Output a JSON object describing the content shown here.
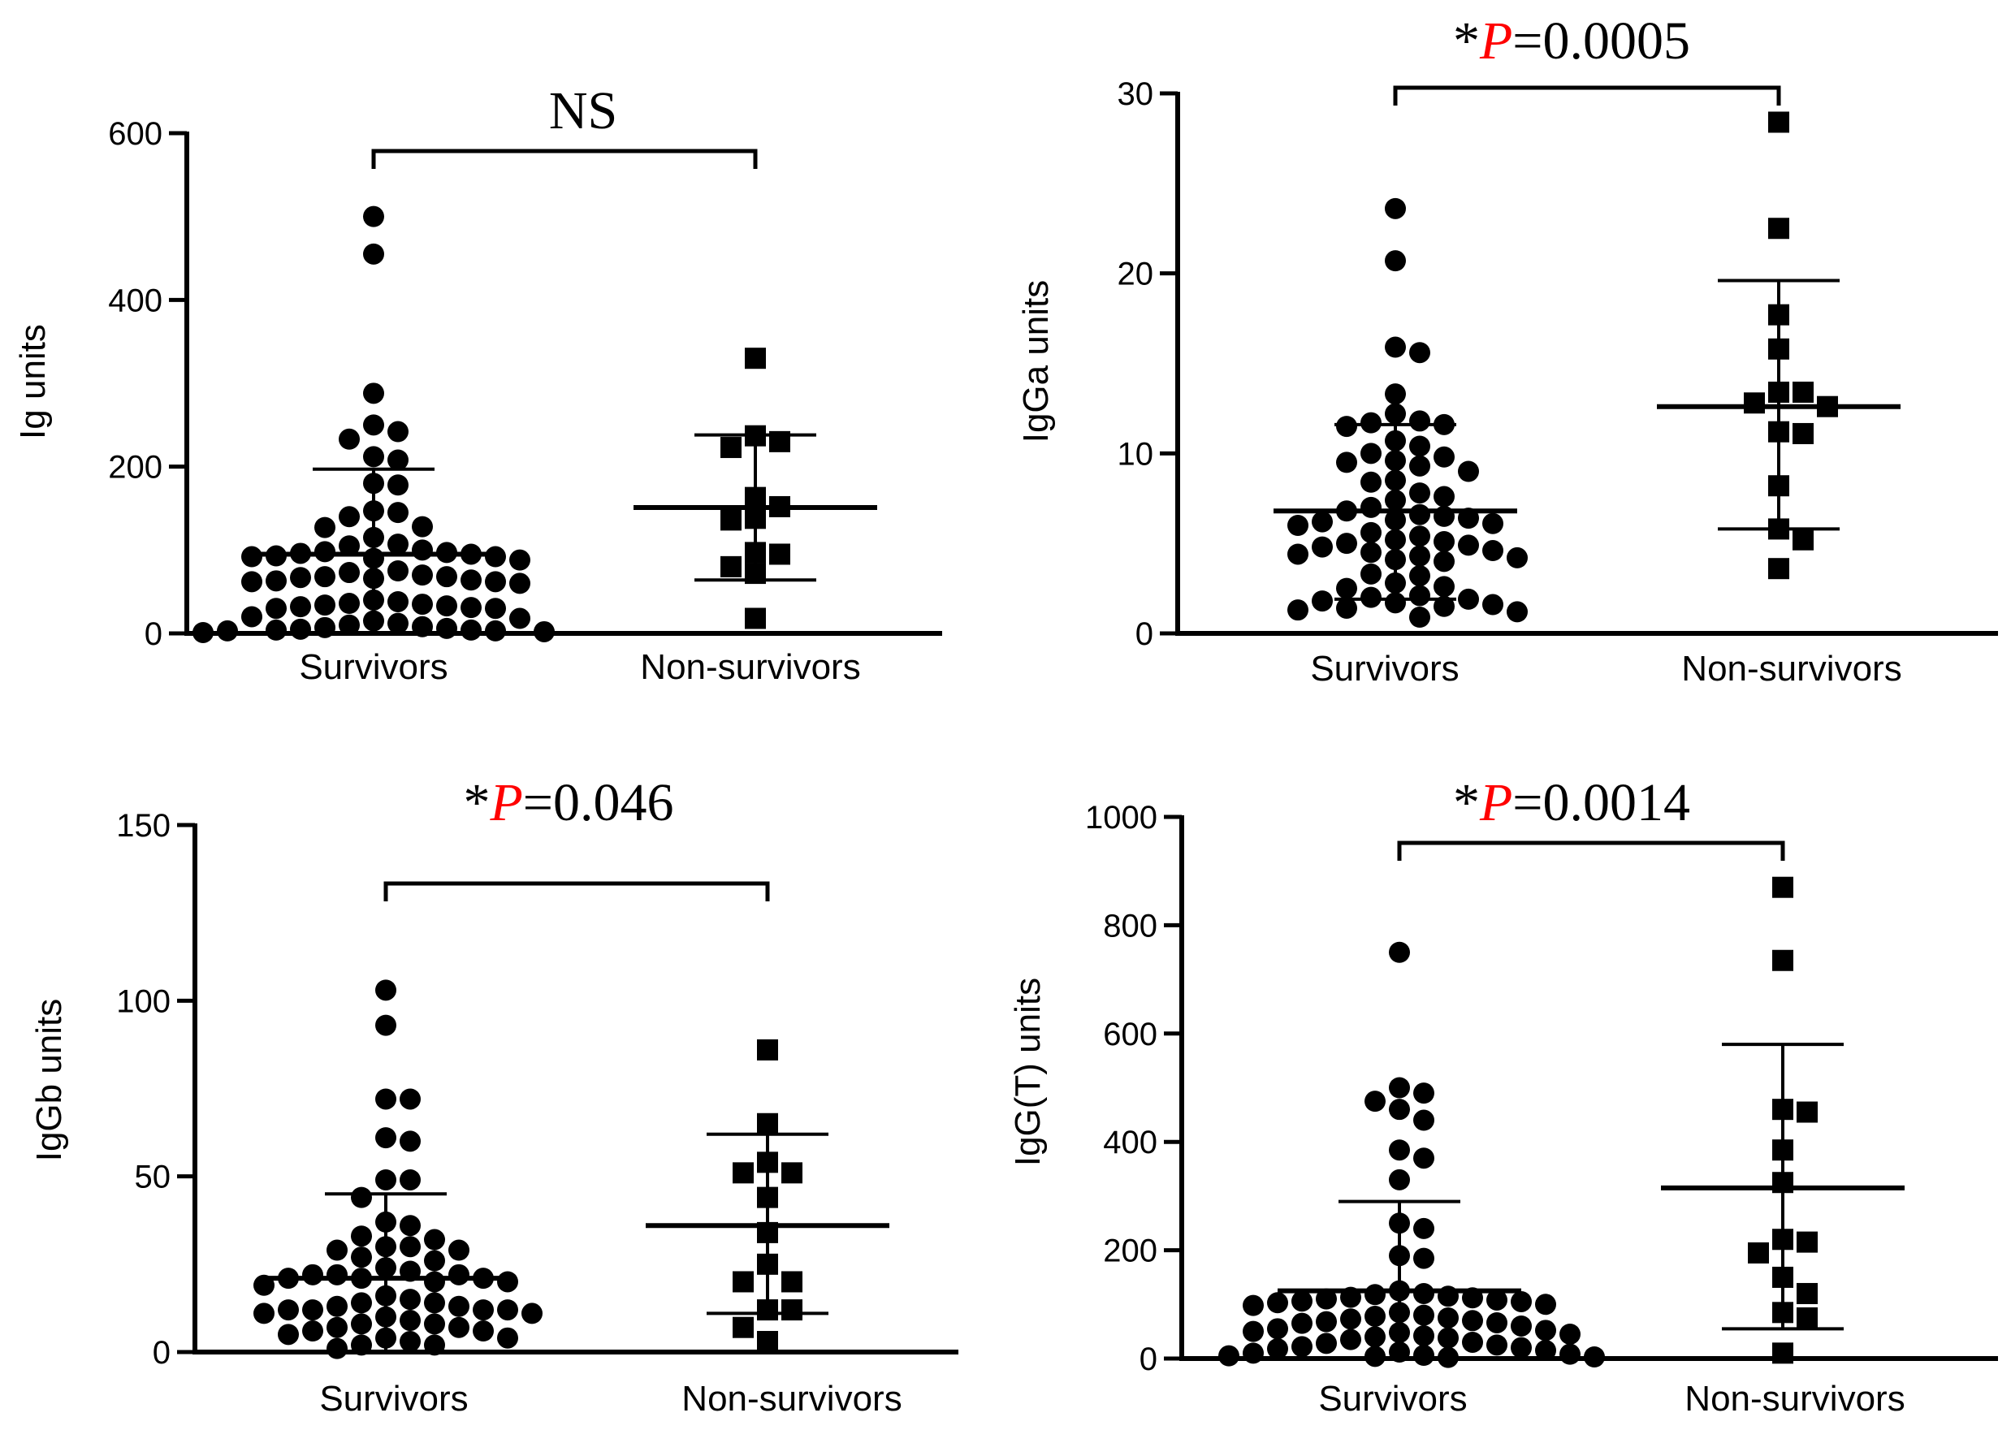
{
  "colors": {
    "ink": "#000000",
    "p_color": "#ff0000"
  },
  "chart_data": [
    {
      "type": "scatter",
      "ylabel": "Ig units",
      "ylim": [
        0,
        600
      ],
      "yticks": [
        0,
        200,
        400,
        600
      ],
      "categories": [
        "Survivors",
        "Non-survivors"
      ],
      "significance": {
        "star": "",
        "p_letter": "",
        "text": "NS"
      },
      "series": [
        {
          "name": "Survivors",
          "marker": "circle",
          "mean": 95,
          "sd_low": 0,
          "sd_high": 197,
          "values": [
            500,
            455,
            288,
            250,
            242,
            233,
            212,
            208,
            180,
            178,
            147,
            145,
            140,
            128,
            127,
            115,
            107,
            105,
            100,
            98,
            97,
            96,
            95,
            93,
            92,
            92,
            90,
            88,
            75,
            73,
            70,
            68,
            68,
            67,
            66,
            64,
            63,
            62,
            62,
            60,
            40,
            38,
            36,
            35,
            34,
            33,
            32,
            31,
            30,
            30,
            20,
            18,
            15,
            12,
            10,
            8,
            7,
            6,
            5,
            4,
            4,
            3,
            3,
            2,
            1
          ]
        },
        {
          "name": "Non-survivors",
          "marker": "square",
          "mean": 151,
          "sd_low": 64,
          "sd_high": 238,
          "values": [
            330,
            237,
            230,
            223,
            163,
            152,
            138,
            136,
            97,
            95,
            80,
            72,
            18
          ]
        }
      ]
    },
    {
      "type": "scatter",
      "ylabel": "IgGa units",
      "ylim": [
        0,
        30
      ],
      "yticks": [
        0,
        10,
        20,
        30
      ],
      "categories": [
        "Survivors",
        "Non-survivors"
      ],
      "significance": {
        "star": "*",
        "p_letter": "P",
        "text": "=0.0005"
      },
      "series": [
        {
          "name": "Survivors",
          "marker": "circle",
          "mean": 6.8,
          "sd_low": 1.9,
          "sd_high": 11.6,
          "values": [
            23.6,
            20.7,
            15.9,
            15.6,
            13.3,
            12.2,
            11.8,
            11.7,
            11.6,
            11.5,
            10.7,
            10.4,
            10.0,
            9.8,
            9.6,
            9.5,
            9.3,
            9.0,
            8.5,
            8.4,
            7.8,
            7.6,
            7.4,
            7.0,
            6.8,
            6.6,
            6.5,
            6.4,
            6.3,
            6.2,
            6.1,
            6.0,
            5.6,
            5.4,
            5.2,
            5.1,
            5.0,
            4.9,
            4.8,
            4.6,
            4.5,
            4.4,
            4.3,
            4.2,
            4.1,
            4.0,
            3.3,
            3.2,
            2.8,
            2.6,
            2.5,
            2.1,
            2.0,
            1.9,
            1.8,
            1.7,
            1.6,
            1.5,
            1.4,
            1.3,
            1.2,
            0.9
          ]
        },
        {
          "name": "Non-survivors",
          "marker": "square",
          "mean": 12.6,
          "sd_low": 5.8,
          "sd_high": 19.6,
          "values": [
            28.4,
            22.5,
            17.7,
            15.8,
            13.4,
            13.4,
            12.8,
            12.6,
            11.2,
            11.1,
            8.2,
            5.8,
            5.2,
            3.6
          ]
        }
      ]
    },
    {
      "type": "scatter",
      "ylabel": "IgGb units",
      "ylim": [
        0,
        150
      ],
      "yticks": [
        0,
        50,
        100,
        150
      ],
      "categories": [
        "Survivors",
        "Non-survivors"
      ],
      "significance": {
        "star": "*",
        "p_letter": "P",
        "text": "=0.046"
      },
      "series": [
        {
          "name": "Survivors",
          "marker": "circle",
          "mean": 21,
          "sd_low": 0,
          "sd_high": 45,
          "values": [
            103,
            93,
            72,
            72,
            61,
            60,
            49,
            49,
            44,
            37,
            36,
            33,
            32,
            30,
            30,
            29,
            29,
            27,
            26,
            24,
            23,
            22,
            22,
            22,
            21,
            21,
            21,
            20,
            20,
            19,
            16,
            15,
            14,
            14,
            13,
            13,
            12,
            12,
            12,
            12,
            11,
            11,
            10,
            9,
            8,
            8,
            7,
            7,
            6,
            6,
            5,
            4,
            4,
            3,
            2,
            2,
            1
          ]
        },
        {
          "name": "Non-survivors",
          "marker": "square",
          "mean": 36,
          "sd_low": 11,
          "sd_high": 62,
          "values": [
            86,
            65,
            54,
            51,
            51,
            44,
            34,
            25,
            20,
            20,
            12,
            12,
            7,
            3
          ]
        }
      ]
    },
    {
      "type": "scatter",
      "ylabel": "IgG(T) units",
      "ylim": [
        0,
        1000
      ],
      "yticks": [
        0,
        200,
        400,
        600,
        800,
        1000
      ],
      "categories": [
        "Survivors",
        "Non-survivors"
      ],
      "significance": {
        "star": "*",
        "p_letter": "P",
        "text": "=0.0014"
      },
      "series": [
        {
          "name": "Survivors",
          "marker": "circle",
          "mean": 125,
          "sd_low": 0,
          "sd_high": 290,
          "values": [
            750,
            500,
            490,
            475,
            460,
            440,
            385,
            370,
            330,
            250,
            240,
            190,
            185,
            125,
            120,
            118,
            115,
            113,
            112,
            110,
            108,
            106,
            105,
            103,
            100,
            98,
            85,
            80,
            78,
            75,
            73,
            70,
            68,
            66,
            65,
            60,
            55,
            52,
            50,
            48,
            45,
            42,
            40,
            38,
            35,
            30,
            28,
            25,
            22,
            20,
            18,
            15,
            12,
            10,
            8,
            6,
            5,
            4,
            3,
            2
          ]
        },
        {
          "name": "Non-survivors",
          "marker": "square",
          "mean": 315,
          "sd_low": 55,
          "sd_high": 580,
          "values": [
            870,
            735,
            460,
            455,
            385,
            325,
            220,
            215,
            195,
            150,
            120,
            85,
            75,
            10
          ]
        }
      ]
    }
  ]
}
